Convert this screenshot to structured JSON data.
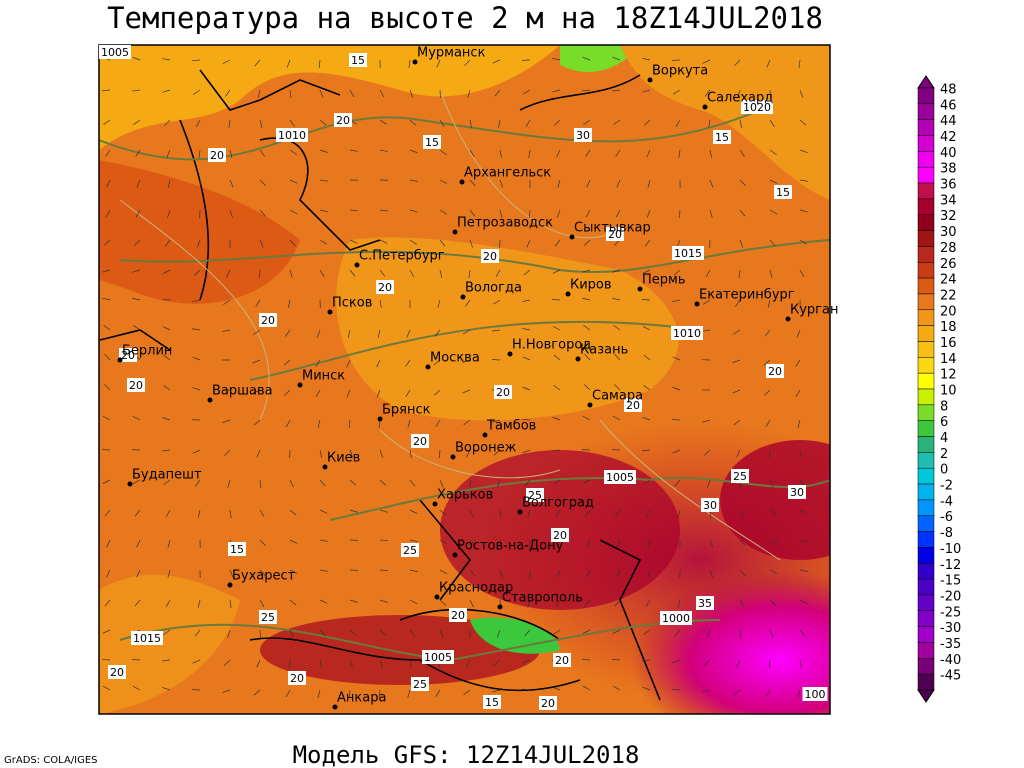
{
  "header": {
    "title": "Температура на высоте 2 м на 18Z14JUL2018"
  },
  "footer": {
    "model": "Модель GFS: 12Z14JUL2018",
    "credit": "GrADS: COLA/IGES"
  },
  "colorbar": {
    "levels": [
      48,
      46,
      44,
      42,
      40,
      38,
      36,
      34,
      32,
      30,
      28,
      26,
      24,
      22,
      20,
      18,
      16,
      14,
      12,
      10,
      8,
      6,
      4,
      2,
      0,
      -2,
      -4,
      -6,
      -8,
      -10,
      -12,
      -15,
      -20,
      -25,
      -30,
      -35,
      -40,
      -45
    ],
    "colors": [
      "#800080",
      "#9a009a",
      "#b400b4",
      "#d200d2",
      "#f000f0",
      "#ff00ff",
      "#c0104c",
      "#a8002c",
      "#90001c",
      "#a01414",
      "#b8281e",
      "#cc3c14",
      "#dc5a14",
      "#e8781e",
      "#f09619",
      "#f5aa14",
      "#f8c014",
      "#fcd814",
      "#ffff00",
      "#c8f000",
      "#78dc28",
      "#3cc83c",
      "#28b478",
      "#1ebeb4",
      "#00c8dc",
      "#00b4f0",
      "#0096ff",
      "#0064ff",
      "#0032ff",
      "#0000e6",
      "#3200c8",
      "#4b00c8",
      "#6400c8",
      "#8200c8",
      "#a000c8",
      "#a000a0",
      "#780078",
      "#500050"
    ]
  },
  "cities": [
    "Мурманск",
    "Воркута",
    "Салехард",
    "Архангельск",
    "Петрозаводск",
    "Сыктывкар",
    "С.Петербург",
    "Вологда",
    "Киров",
    "Пермь",
    "Екатеринбург",
    "Курган",
    "Псков",
    "Н.Новгород",
    "Казань",
    "Москва",
    "Берлин",
    "Минск",
    "Варшава",
    "Самара",
    "Брянск",
    "Тамбов",
    "Киев",
    "Воронеж",
    "Будапешт",
    "Харьков",
    "Волгоград",
    "Ростов-на-Дону",
    "Бухарест",
    "Краснодар",
    "Ставрополь",
    "Анкара"
  ],
  "contour_labels": [
    "1005",
    "1010",
    "1020",
    "1015",
    "1010",
    "1005",
    "1000",
    "1005",
    "1015",
    "15",
    "20",
    "20",
    "15",
    "30",
    "15",
    "15",
    "20",
    "20",
    "20",
    "20",
    "20",
    "20",
    "20",
    "20",
    "20",
    "20",
    "25",
    "30",
    "30",
    "25",
    "20",
    "25",
    "15",
    "35",
    "25",
    "20",
    "20",
    "20",
    "20",
    "25",
    "20",
    "15",
    "100"
  ]
}
